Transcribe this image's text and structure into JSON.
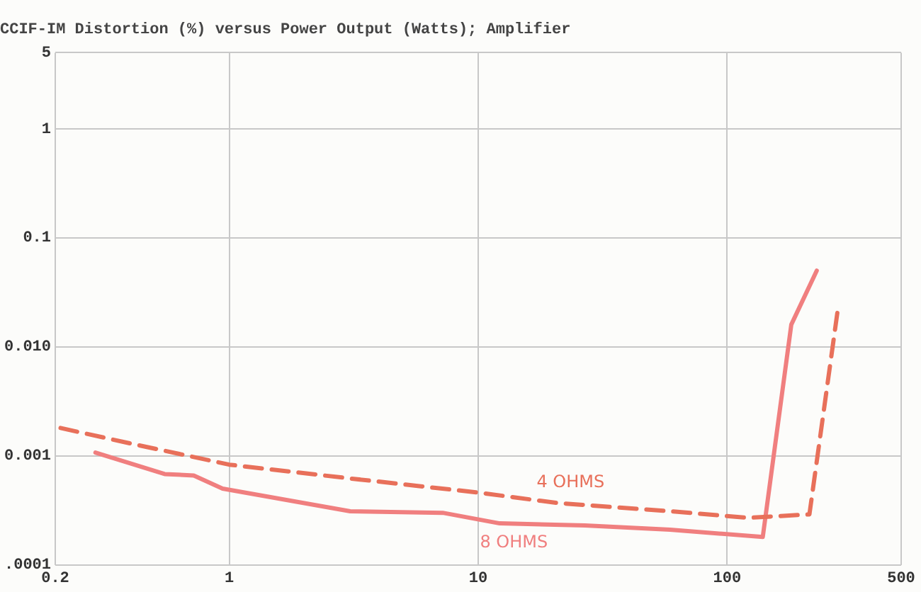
{
  "chart_data": {
    "type": "line",
    "title": "CCIF-IM Distortion (%) versus Power Output (Watts); Amplifier",
    "log": "xy",
    "grid": true,
    "legend": false,
    "marker": "none",
    "xlim": [
      0.2,
      500
    ],
    "xticks": [
      0.2,
      1,
      10,
      100,
      500
    ],
    "ylim": [
      0.0001,
      5
    ],
    "yticks": [
      {
        "value": 0.0001,
        "label": ".0001"
      },
      0.001,
      {
        "value": 0.01,
        "label": "0.010"
      },
      0.1,
      1,
      5
    ],
    "series": [
      {
        "name": "4 OHMS",
        "color": "#e8705a",
        "line_style": "dashed",
        "x": [
          0.21,
          0.4,
          1,
          3.06,
          10,
          20.6,
          59,
          121,
          214,
          279
        ],
        "values": [
          0.0018,
          0.0013,
          0.00083,
          0.00062,
          0.00046,
          0.00037,
          0.00031,
          0.00027,
          0.00029,
          0.023
        ]
      },
      {
        "name": "8 OHMS",
        "color": "#f07f7f",
        "line_style": "solid",
        "x": [
          0.29,
          0.55,
          0.72,
          0.94,
          3.06,
          7.2,
          12.2,
          26.8,
          59,
          139,
          181,
          229
        ],
        "values": [
          0.00107,
          0.00068,
          0.00066,
          0.0005,
          0.00031,
          0.0003,
          0.00024,
          0.00023,
          0.00021,
          0.00018,
          0.016,
          0.05
        ]
      }
    ]
  }
}
